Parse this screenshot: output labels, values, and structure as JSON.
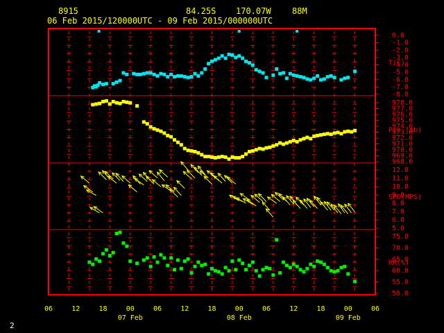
{
  "header": {
    "station": "8915",
    "lat": "84.25S",
    "lon": "170.07W",
    "elev": "88M",
    "range": "06 Feb 2015/120000UTC - 09 Feb 2015/000000UTC"
  },
  "corner_label": "2",
  "colors": {
    "frame": "#ff0000",
    "grid": "#ff0000",
    "label": "#ff0000",
    "xlabel": "#ffff00",
    "temp": "#00e5ee",
    "pres": "#ffff00",
    "wind": "#ffff00",
    "rh": "#00ee00"
  },
  "chart_data": [
    {
      "type": "scatter",
      "name": "temperature",
      "ylabel": "T(C)",
      "ticks": [
        "0.0",
        "-1.0",
        "-2.0",
        "-3.0",
        "-4.0",
        "-5.0",
        "-6.0",
        "-7.0",
        "-8.0"
      ],
      "ylim": [
        -8,
        0
      ],
      "x_hours": [
        13,
        13.5,
        14,
        14.5,
        15,
        16,
        17,
        19,
        20,
        21,
        22,
        23,
        25,
        26,
        27,
        28,
        29,
        30,
        31,
        32,
        33,
        34,
        35,
        36,
        37,
        38,
        39,
        40,
        41,
        42,
        43,
        44,
        45,
        46,
        47,
        48,
        49,
        50,
        51,
        52,
        53,
        54,
        55,
        56,
        57,
        58,
        59,
        60,
        61,
        62,
        63,
        64,
        66,
        67,
        68,
        69,
        70,
        71,
        72,
        73,
        74,
        75,
        76,
        77,
        78,
        79,
        80,
        81,
        82,
        83,
        84,
        86,
        87,
        88,
        90
      ],
      "values": [
        -7.3,
        -7.1,
        -7.2,
        -7.0,
        -6.7,
        -6.9,
        -6.8,
        -6.8,
        -6.6,
        -6.4,
        -5.4,
        -5.6,
        -5.5,
        -5.6,
        -5.6,
        -5.5,
        -5.4,
        -5.4,
        -5.6,
        -5.8,
        -5.5,
        -5.6,
        -5.9,
        -5.6,
        -5.9,
        -5.8,
        -5.8,
        -5.9,
        -6.0,
        -5.9,
        -5.5,
        -5.8,
        -5.4,
        -4.9,
        -4.2,
        -3.9,
        -3.7,
        -3.5,
        -3.2,
        -3.5,
        -3.0,
        -3.1,
        -3.4,
        -3.2,
        -3.5,
        -3.9,
        -4.1,
        -4.4,
        -5.0,
        -5.2,
        -5.4,
        -6.0,
        -5.7,
        -4.9,
        -5.5,
        -5.4,
        -6.1,
        -5.5,
        -5.7,
        -5.8,
        -5.9,
        -6.0,
        -6.2,
        -6.3,
        -6.1,
        -5.8,
        -6.3,
        -6.2,
        -5.9,
        -5.8,
        -6.0,
        -6.3,
        -6.1,
        -6.0,
        -5.2
      ],
      "outliers_x": [
        14.8,
        56,
        73
      ],
      "outliers_y": [
        0.0,
        0.0,
        0.0
      ]
    },
    {
      "type": "scatter",
      "name": "pressure",
      "ylabel": "Pre (mb)",
      "ticks": [
        "978.0",
        "977.0",
        "976.0",
        "975.0",
        "974.0",
        "973.0",
        "972.0",
        "971.0",
        "970.0",
        "969.0",
        "968.0"
      ],
      "ylim": [
        968,
        978
      ],
      "x_hours": [
        13,
        14,
        15,
        16,
        17,
        18,
        19,
        20,
        21,
        22,
        23,
        24,
        26,
        28,
        29,
        30,
        31,
        32,
        33,
        34,
        35,
        36,
        37,
        38,
        39,
        40,
        41,
        42,
        43,
        44,
        45,
        46,
        47,
        48,
        49,
        50,
        51,
        52,
        53,
        54,
        55,
        56,
        57,
        58,
        59,
        60,
        61,
        62,
        63,
        64,
        65,
        66,
        67,
        68,
        69,
        70,
        71,
        72,
        73,
        74,
        75,
        76,
        77,
        78,
        79,
        80,
        81,
        82,
        83,
        84,
        85,
        86,
        87,
        88,
        89,
        90
      ],
      "values": [
        977.0,
        977.1,
        977.2,
        977.5,
        977.6,
        977.1,
        977.5,
        977.3,
        977.2,
        977.5,
        977.4,
        977.3,
        976.8,
        974.2,
        973.9,
        973.4,
        973.1,
        972.9,
        972.7,
        972.4,
        972.0,
        971.8,
        971.3,
        970.9,
        970.5,
        969.9,
        969.6,
        969.5,
        969.4,
        969.2,
        968.9,
        968.6,
        968.6,
        968.5,
        968.4,
        968.5,
        968.6,
        968.5,
        968.2,
        968.5,
        968.4,
        968.4,
        968.6,
        969.0,
        969.4,
        969.5,
        969.7,
        969.9,
        969.8,
        970.0,
        970.1,
        970.3,
        970.5,
        970.8,
        970.6,
        970.8,
        971.0,
        971.2,
        971.0,
        971.3,
        971.5,
        971.7,
        971.5,
        971.9,
        972.0,
        972.1,
        972.2,
        972.3,
        972.2,
        972.4,
        972.5,
        972.3,
        972.6,
        972.7,
        972.6,
        972.8
      ]
    },
    {
      "type": "scatter",
      "name": "wind_speed",
      "ylabel": "SPD(MPS)",
      "ticks": [
        "12.0",
        "11.0",
        "10.0",
        "9.0",
        "8.0",
        "7.0",
        "6.0",
        "5.0"
      ],
      "ylim": [
        5,
        12
      ],
      "x_hours": [
        12,
        13,
        14,
        15,
        16,
        17,
        18,
        19,
        20,
        21,
        22,
        24,
        26,
        27,
        28,
        29,
        30,
        31,
        32,
        33,
        34,
        35,
        36,
        37,
        38,
        39,
        40,
        41,
        42,
        43,
        44,
        45,
        46,
        47,
        48,
        49,
        50,
        51,
        52,
        54,
        55,
        56,
        57,
        58,
        59,
        60,
        61,
        62,
        63,
        64,
        65,
        66,
        67,
        68,
        69,
        70,
        71,
        72,
        73,
        74,
        75,
        76,
        77,
        78,
        79,
        80,
        81,
        82,
        83,
        84,
        85,
        86,
        87,
        88,
        89,
        90
      ],
      "values": [
        10.0,
        9.0,
        8.6,
        6.6,
        6.6,
        10.4,
        10.5,
        10.5,
        10.0,
        10.3,
        10.2,
        10.0,
        9.0,
        9.9,
        9.8,
        10.2,
        10.3,
        9.9,
        10.6,
        9.6,
        10.3,
        10.7,
        9.1,
        9.0,
        8.4,
        8.6,
        9.4,
        11.5,
        10.5,
        10.6,
        11.2,
        10.9,
        11.0,
        10.6,
        9.9,
        10.6,
        10.3,
        10.0,
        10.2,
        10.0,
        9.9,
        8.0,
        7.9,
        7.7,
        8.1,
        7.6,
        7.4,
        7.8,
        7.9,
        7.9,
        6.9,
        6.1,
        7.7,
        7.9,
        8.1,
        7.9,
        7.5,
        7.6,
        7.5,
        7.1,
        7.5,
        7.1,
        7.2,
        7.3,
        7.1,
        7.5,
        7.4,
        6.9,
        6.9,
        6.9,
        6.6,
        6.5,
        6.6,
        6.5,
        6.6,
        6.7
      ],
      "dir_deg": [
        310,
        305,
        300,
        300,
        305,
        315,
        318,
        312,
        310,
        315,
        318,
        312,
        310,
        318,
        305,
        312,
        318,
        315,
        312,
        310,
        320,
        312,
        305,
        310,
        315,
        318,
        315,
        320,
        312,
        315,
        318,
        318,
        320,
        310,
        315,
        312,
        315,
        312,
        318,
        315,
        310,
        300,
        298,
        300,
        305,
        300,
        305,
        310,
        312,
        315,
        318,
        320,
        305,
        310,
        312,
        315,
        318,
        320,
        322,
        318,
        315,
        320,
        322,
        320,
        318,
        322,
        320,
        320,
        322,
        318,
        322,
        320,
        325,
        320,
        322,
        322
      ]
    },
    {
      "type": "scatter",
      "name": "relative_humidity",
      "ylabel": "RH(%)",
      "ticks": [
        "75.0",
        "70.0",
        "65.0",
        "60.0",
        "55.0",
        "50.0"
      ],
      "ylim": [
        50,
        78
      ],
      "x_hours": [
        12,
        13,
        14,
        15,
        16,
        17,
        18,
        19,
        20,
        21,
        22,
        23,
        24,
        26,
        28,
        29,
        30,
        31,
        32,
        33,
        34,
        35,
        36,
        37,
        38,
        39,
        40,
        41,
        42,
        43,
        44,
        45,
        46,
        47,
        48,
        49,
        50,
        51,
        52,
        53,
        54,
        55,
        56,
        57,
        58,
        59,
        60,
        61,
        62,
        63,
        64,
        65,
        66,
        67,
        68,
        69,
        70,
        71,
        72,
        73,
        74,
        75,
        76,
        77,
        78,
        79,
        80,
        81,
        82,
        83,
        84,
        85,
        86,
        87,
        88,
        90
      ],
      "values": [
        64.0,
        63.0,
        65.5,
        64.5,
        68.0,
        69.8,
        67.0,
        68.5,
        77.5,
        78.0,
        73.0,
        71.5,
        64.5,
        63.5,
        65.0,
        66.0,
        62.0,
        66.5,
        64.0,
        67.5,
        66.0,
        62.5,
        66.0,
        60.5,
        65.0,
        61.0,
        64.5,
        65.5,
        59.0,
        62.0,
        64.0,
        62.5,
        63.0,
        58.5,
        61.0,
        60.0,
        59.5,
        58.5,
        61.5,
        60.0,
        64.5,
        60.5,
        65.0,
        63.5,
        60.5,
        62.5,
        64.0,
        60.0,
        57.5,
        60.5,
        61.5,
        61.0,
        58.0,
        74.5,
        59.0,
        64.0,
        62.5,
        61.5,
        63.0,
        62.0,
        60.5,
        59.5,
        61.0,
        63.0,
        62.0,
        64.5,
        64.0,
        63.0,
        61.5,
        60.0,
        59.5,
        60.0,
        61.5,
        62.0,
        58.5,
        55.0
      ]
    },
    {
      "type": "axis",
      "x_tick_labels": [
        "06",
        "12",
        "18",
        "00",
        "06",
        "12",
        "18",
        "00",
        "06",
        "12",
        "18",
        "00",
        "06"
      ],
      "x_day_labels": [
        "07 Feb",
        "08 Feb",
        "09 Feb"
      ],
      "xlim_hours": [
        0,
        96
      ]
    }
  ]
}
